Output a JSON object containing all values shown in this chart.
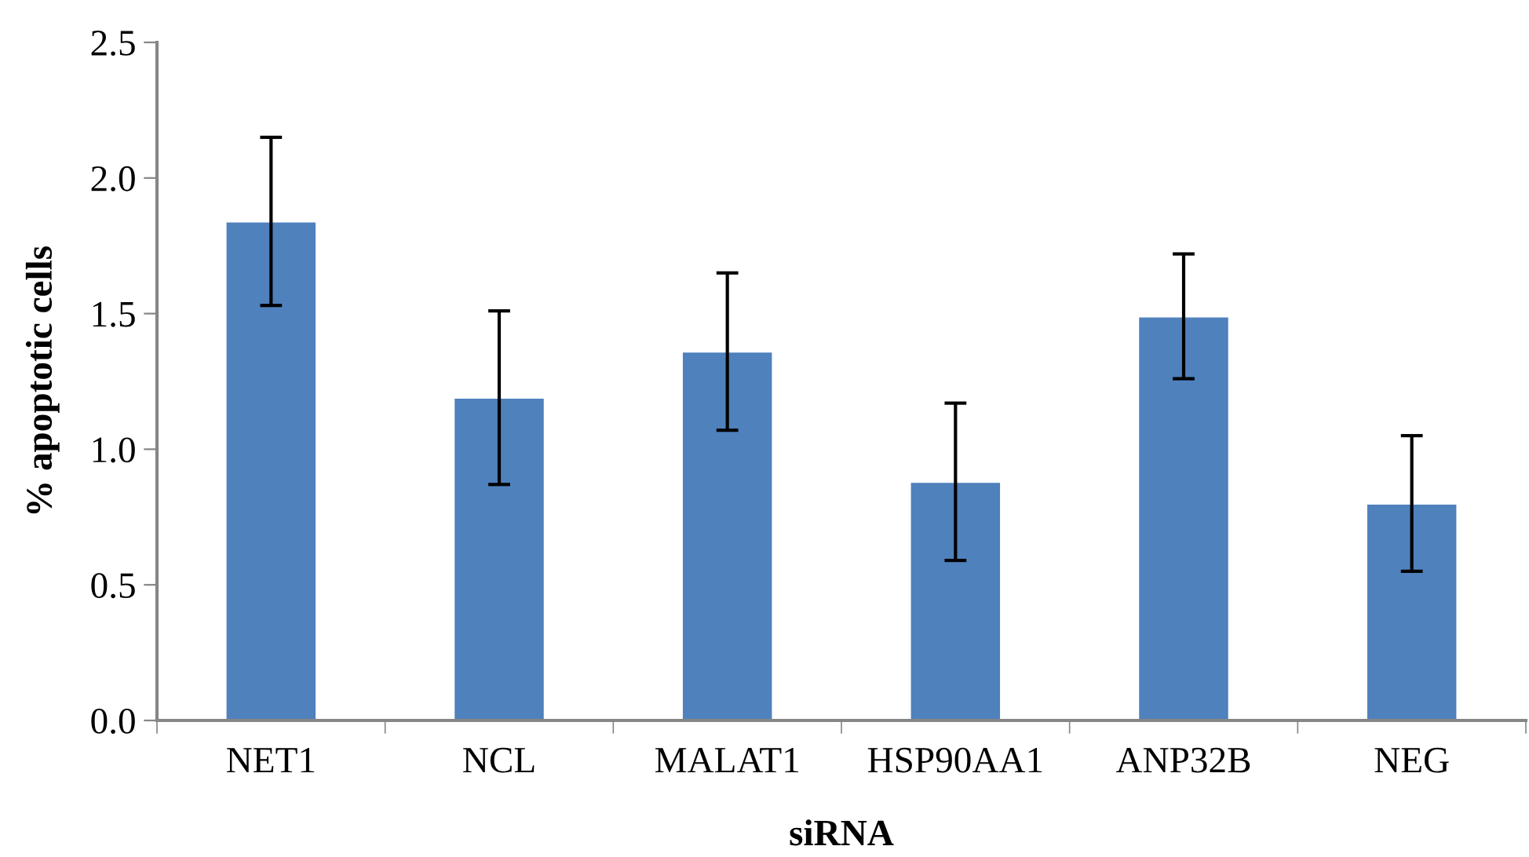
{
  "chart_data": {
    "type": "bar",
    "xlabel": "siRNA",
    "ylabel": "% apoptotic cells",
    "categories": [
      "NET1",
      "NCL",
      "MALAT1",
      "HSP90AA1",
      "ANP32B",
      "NEG"
    ],
    "values": [
      1.84,
      1.19,
      1.36,
      0.88,
      1.49,
      0.8
    ],
    "errors": [
      0.31,
      0.32,
      0.29,
      0.29,
      0.23,
      0.25
    ],
    "color": "#4f81bd",
    "ylim": [
      0,
      2.5
    ],
    "yticks": [
      {
        "value": 0,
        "label": "0.0"
      },
      {
        "value": 0.5,
        "label": "0.5"
      },
      {
        "value": 1,
        "label": "1.0"
      },
      {
        "value": 1.5,
        "label": "1.5"
      },
      {
        "value": 2,
        "label": "2.0"
      },
      {
        "value": 2.5,
        "label": "2.5"
      }
    ],
    "grid": false
  }
}
